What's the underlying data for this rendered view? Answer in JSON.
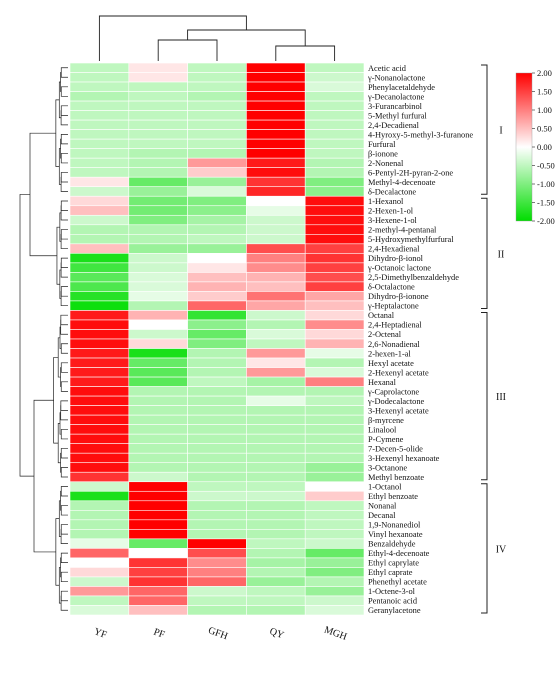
{
  "chart_data": {
    "type": "heatmap",
    "columns": [
      "YF",
      "PF",
      "GFH",
      "QY",
      "MGH"
    ],
    "rows": [
      "Acetic acid",
      "γ-Nonanolactone",
      "Phenylacetaldehyde",
      "γ-Decanolactone",
      "3-Furancarbinol",
      "5-Methyl furfural",
      "2,4-Decadienal",
      "4-Hyroxy-5-methyl-3-furanone",
      "Furfural",
      "β-ionone",
      "2-Nonenal",
      "6-Pentyl-2H-pyran-2-one",
      "Methyl-4-decenoate",
      "δ-Decalactone",
      "1-Hexanol",
      "2-Hexen-1-ol",
      "3-Hexene-1-ol",
      "2-methyl-4-pentanal",
      "5-Hydroxymethylfurfural",
      "2,4-Hexadienal",
      "Dihydro-β-ionol",
      "γ-Octanoic lactone",
      "2,5-Dimethylbenzaldehyde",
      "δ-Octalactone",
      "Dihydro-β-ionone",
      "γ-Heptalactone",
      "Octanal",
      "2,4-Heptadienal",
      "2-Octenal",
      "2,6-Nonadienal",
      "2-hexen-1-al",
      "Hexyl acetate",
      "2-Hexenyl acetate",
      "Hexanal",
      "γ-Caprolactone",
      "γ-Dodecalactone",
      "3-Hexenyl acetate",
      "β-myrcene",
      "Linalool",
      "P-Cymene",
      "7-Decen-5-olide",
      "3-Hexenyl hexanoate",
      "3-Octanone",
      "Methyl benzoate",
      "1-Octanol",
      "Ethyl benzoate",
      "Nonanal",
      "Decanal",
      "1,9-Nonanediol",
      "Vinyl hexanoate",
      "Benzaldehyde",
      "Ethyl-4-decenoate",
      "Ethyl caprylate",
      "Ethyl caprate",
      "Phenethyl acetate",
      "1-Octene-3-ol",
      "Pentanoic acid",
      "Geranylacetone"
    ],
    "values": [
      [
        -0.5,
        0.2,
        -0.5,
        2.0,
        -0.5
      ],
      [
        -0.5,
        0.2,
        -0.5,
        2.0,
        -0.4
      ],
      [
        -0.5,
        -0.5,
        -0.5,
        2.0,
        -0.3
      ],
      [
        -0.6,
        -0.5,
        -0.6,
        2.0,
        -0.5
      ],
      [
        -0.5,
        -0.5,
        -0.5,
        2.0,
        -0.5
      ],
      [
        -0.5,
        -0.5,
        -0.5,
        2.0,
        -0.5
      ],
      [
        -0.5,
        -0.5,
        -0.5,
        2.0,
        -0.5
      ],
      [
        -0.5,
        -0.5,
        -0.5,
        2.0,
        -0.5
      ],
      [
        -0.5,
        -0.5,
        -0.5,
        2.0,
        -0.5
      ],
      [
        -0.5,
        -0.6,
        -0.6,
        2.0,
        -0.5
      ],
      [
        -0.5,
        -0.6,
        0.8,
        1.8,
        -0.6
      ],
      [
        -0.5,
        -0.6,
        0.4,
        1.9,
        -0.6
      ],
      [
        0.2,
        -1.2,
        -0.8,
        1.6,
        -1.0
      ],
      [
        -0.4,
        -0.8,
        -0.3,
        1.7,
        -0.9
      ],
      [
        0.3,
        -1.1,
        -1.0,
        0.0,
        1.9
      ],
      [
        0.5,
        -1.1,
        -0.9,
        -0.2,
        1.9
      ],
      [
        -0.4,
        -1.0,
        -0.7,
        -0.4,
        1.9
      ],
      [
        -0.6,
        -0.6,
        -0.6,
        -0.4,
        1.9
      ],
      [
        -0.6,
        -0.6,
        -0.5,
        -0.4,
        1.9
      ],
      [
        0.5,
        -0.8,
        -0.8,
        1.4,
        1.5
      ],
      [
        -1.8,
        -0.4,
        0.0,
        1.0,
        1.6
      ],
      [
        -1.5,
        -0.4,
        0.2,
        0.9,
        1.5
      ],
      [
        -1.3,
        -0.3,
        0.5,
        0.6,
        1.4
      ],
      [
        -1.4,
        -0.3,
        0.6,
        0.5,
        1.5
      ],
      [
        -1.7,
        -0.2,
        0.4,
        1.1,
        0.7
      ],
      [
        -1.9,
        -0.6,
        1.2,
        0.7,
        0.5
      ],
      [
        1.8,
        0.6,
        -1.6,
        -0.4,
        0.3
      ],
      [
        1.9,
        0.0,
        -0.9,
        -0.6,
        0.9
      ],
      [
        1.9,
        -0.4,
        -1.2,
        -0.3,
        0.3
      ],
      [
        1.9,
        0.3,
        -1.0,
        -0.5,
        0.6
      ],
      [
        1.8,
        -1.8,
        -0.6,
        0.8,
        -0.2
      ],
      [
        1.8,
        -1.2,
        -0.6,
        0.2,
        -0.6
      ],
      [
        1.8,
        -1.3,
        -0.6,
        0.8,
        -0.3
      ],
      [
        1.8,
        -1.3,
        -0.5,
        -0.7,
        1.0
      ],
      [
        1.9,
        -0.6,
        -0.6,
        -0.6,
        -0.6
      ],
      [
        1.9,
        -0.6,
        -0.6,
        -0.2,
        -0.5
      ],
      [
        1.9,
        -0.6,
        -0.6,
        -0.6,
        -0.6
      ],
      [
        1.9,
        -0.6,
        -0.6,
        -0.6,
        -0.6
      ],
      [
        1.9,
        -0.6,
        -0.6,
        -0.6,
        -0.6
      ],
      [
        1.9,
        -0.6,
        -0.6,
        -0.6,
        -0.6
      ],
      [
        1.9,
        -0.6,
        -0.6,
        -0.6,
        -0.6
      ],
      [
        1.9,
        -0.6,
        -0.6,
        -0.6,
        -0.6
      ],
      [
        1.9,
        -0.6,
        -0.6,
        -0.6,
        -0.8
      ],
      [
        1.6,
        -0.4,
        -0.6,
        -0.6,
        -0.8
      ],
      [
        -0.4,
        2.0,
        -0.5,
        -0.5,
        0.0
      ],
      [
        -1.8,
        2.0,
        -0.4,
        -0.4,
        0.4
      ],
      [
        -0.6,
        2.0,
        -0.6,
        -0.6,
        -0.5
      ],
      [
        -0.6,
        2.0,
        -0.6,
        -0.6,
        -0.5
      ],
      [
        -0.6,
        2.0,
        -0.6,
        -0.6,
        -0.5
      ],
      [
        -0.6,
        2.0,
        -0.6,
        -0.6,
        -0.5
      ],
      [
        -0.2,
        -1.2,
        2.0,
        -0.5,
        -0.4
      ],
      [
        1.2,
        0.0,
        1.4,
        -0.6,
        -1.2
      ],
      [
        0.0,
        1.6,
        0.9,
        -0.7,
        -0.8
      ],
      [
        0.3,
        1.5,
        1.0,
        -0.6,
        -1.0
      ],
      [
        -0.4,
        1.6,
        1.2,
        -0.8,
        -0.6
      ],
      [
        0.8,
        1.2,
        -0.4,
        -0.5,
        -0.8
      ],
      [
        -0.5,
        1.2,
        -0.5,
        -0.5,
        -0.4
      ],
      [
        -0.3,
        0.5,
        -0.6,
        -0.6,
        -0.3
      ]
    ],
    "clusters": [
      {
        "label": "I",
        "from": 0,
        "to": 13
      },
      {
        "label": "II",
        "from": 14,
        "to": 25
      },
      {
        "label": "III",
        "from": 26,
        "to": 43
      },
      {
        "label": "IV",
        "from": 44,
        "to": 57
      }
    ],
    "legend": {
      "ticks": [
        "2.00",
        "1.50",
        "1.00",
        "0.50",
        "0.00",
        "-0.50",
        "-1.00",
        "-1.50",
        "-2.00"
      ],
      "min": -2.0,
      "max": 2.0,
      "colors": {
        "low": "#00dd00",
        "mid": "#ffffff",
        "high": "#ff0000"
      }
    }
  }
}
